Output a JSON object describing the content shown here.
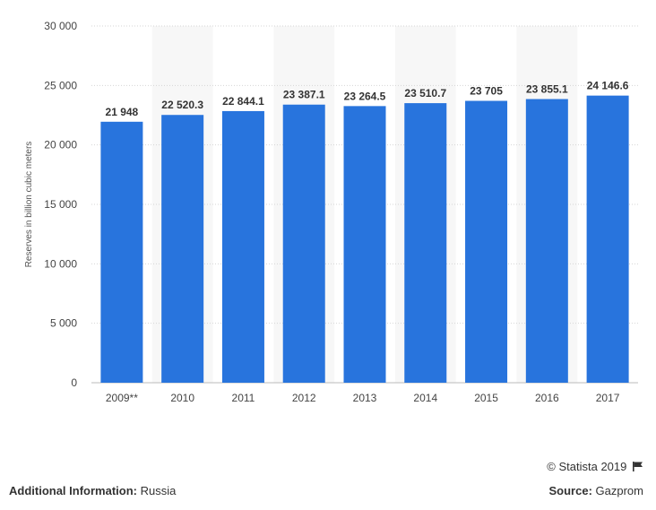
{
  "chart_data": {
    "type": "bar",
    "categories": [
      "2009**",
      "2010",
      "2011",
      "2012",
      "2013",
      "2014",
      "2015",
      "2016",
      "2017"
    ],
    "values": [
      21948,
      22520.3,
      22844.1,
      23387.1,
      23264.5,
      23510.7,
      23705,
      23855.1,
      24146.6
    ],
    "value_labels": [
      "21 948",
      "22 520.3",
      "22 844.1",
      "23 387.1",
      "23 264.5",
      "23 510.7",
      "23 705",
      "23 855.1",
      "24 146.6"
    ],
    "ylabel": "Reserves in billion cubic meters",
    "ylim": [
      0,
      30000
    ],
    "yticks": [
      0,
      5000,
      10000,
      15000,
      20000,
      25000,
      30000
    ],
    "ytick_labels": [
      "0",
      "5 000",
      "10 000",
      "15 000",
      "20 000",
      "25 000",
      "30 000"
    ],
    "grid": true,
    "bar_color": "#2874dd"
  },
  "footer": {
    "copyright": "© Statista 2019",
    "additional_label": "Additional Information:",
    "additional_value": "Russia",
    "source_label": "Source:",
    "source_value": "Gazprom"
  }
}
